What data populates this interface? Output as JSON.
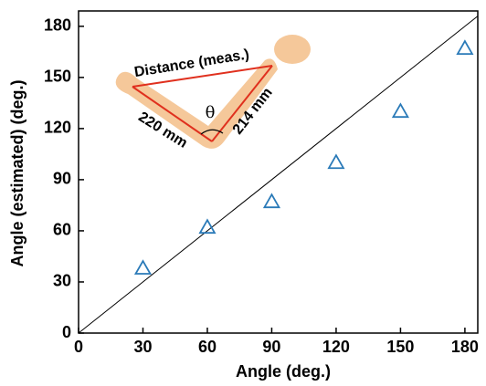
{
  "chart_data": {
    "type": "scatter",
    "x_label": "Angle (deg.)",
    "y_label": "Angle (estimated) (deg.)",
    "series": [
      {
        "name": null,
        "color": "#2a7ab8",
        "marker": "open-triangle",
        "x": [
          30,
          60,
          90,
          120,
          150,
          180
        ],
        "values": [
          38,
          62,
          77,
          100,
          130,
          167
        ]
      }
    ],
    "xlim": [
      0,
      186
    ],
    "ylim": [
      0,
      189
    ],
    "xticks": [
      0,
      30,
      60,
      90,
      120,
      150,
      180
    ],
    "yticks": [
      0,
      30,
      60,
      90,
      120,
      150,
      180
    ],
    "identity_line": true,
    "annotations": [
      "Distance (meas.)",
      "220 mm",
      "214 mm",
      "θ"
    ]
  }
}
